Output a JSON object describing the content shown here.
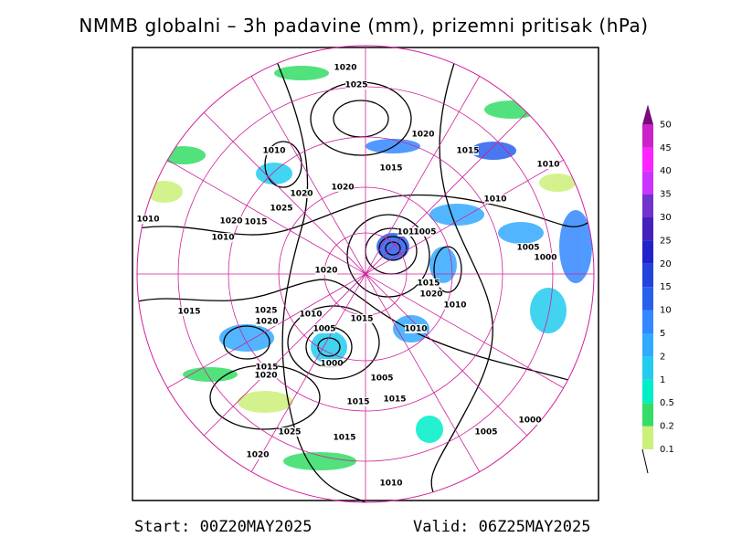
{
  "title": "NMMB globalni – 3h padavine (mm), prizemni pritisak (hPa)",
  "colorbar": {
    "levels": [
      0.1,
      0.2,
      0.5,
      1,
      2,
      5,
      10,
      15,
      20,
      25,
      30,
      35,
      40,
      45,
      50
    ],
    "colors": [
      "#ccf07a",
      "#33dd66",
      "#00eec8",
      "#22ccee",
      "#33aaff",
      "#3388ff",
      "#2860ee",
      "#2244dd",
      "#2222cc",
      "#4422bb",
      "#7033cc",
      "#cc33ff",
      "#ff22ff",
      "#cc22cc",
      "#7a0a7a"
    ]
  },
  "isobar_labels": [
    "1020",
    "1025",
    "1020",
    "1015",
    "1010",
    "1010",
    "1010",
    "1015",
    "1020",
    "1020",
    "1025",
    "1010",
    "1020",
    "1015",
    "1010",
    "1010",
    "1005",
    "1005",
    "1000",
    "1020",
    "1015",
    "1020",
    "1010",
    "1015",
    "1025",
    "1020",
    "1010",
    "1005",
    "1015",
    "1010",
    "1000",
    "1015",
    "1020",
    "1005",
    "1015",
    "1015",
    "1000",
    "1005",
    "1025",
    "1015",
    "1020",
    "1010"
  ],
  "footer": {
    "start": "Start: 00Z20MAY2025",
    "valid": "Valid: 06Z25MAY2025"
  }
}
